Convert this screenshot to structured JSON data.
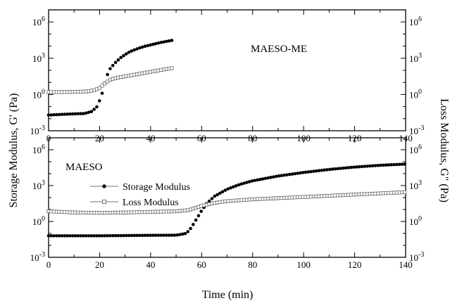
{
  "chart_data": [
    {
      "type": "scatter",
      "panel": "top",
      "annotation": "MAESO-ME",
      "xlim": [
        0,
        140
      ],
      "ylim_log10": [
        -3,
        7
      ],
      "y_scale": "log",
      "x_ticks": [
        "0",
        "20",
        "40",
        "60",
        "80",
        "100",
        "120",
        "140"
      ],
      "y_ticks": [
        "10^-3",
        "10^0",
        "10^3",
        "10^6"
      ],
      "series": [
        {
          "name": "Storage Modulus",
          "marker": "filled-circle",
          "x": [
            0,
            5,
            10,
            14,
            17,
            19,
            20,
            21,
            22,
            23,
            24,
            26,
            28,
            30,
            32,
            35,
            38,
            41,
            44,
            47,
            49
          ],
          "log10_y": [
            -1.7,
            -1.65,
            -1.6,
            -1.58,
            -1.4,
            -1.0,
            -0.5,
            0.1,
            0.9,
            1.6,
            2.1,
            2.6,
            3.0,
            3.3,
            3.55,
            3.8,
            4.0,
            4.15,
            4.3,
            4.42,
            4.5
          ]
        },
        {
          "name": "Loss Modulus",
          "marker": "open-square",
          "x": [
            0,
            5,
            10,
            15,
            18,
            20,
            22,
            24,
            26,
            30,
            34,
            38,
            42,
            46,
            49
          ],
          "log10_y": [
            0.2,
            0.2,
            0.22,
            0.25,
            0.35,
            0.55,
            0.9,
            1.2,
            1.35,
            1.5,
            1.65,
            1.8,
            1.95,
            2.1,
            2.2
          ]
        }
      ]
    },
    {
      "type": "scatter",
      "panel": "bottom",
      "annotation": "MAESO",
      "xlim": [
        0,
        140
      ],
      "ylim_log10": [
        -3,
        7
      ],
      "y_scale": "log",
      "x_ticks": [
        "0",
        "20",
        "40",
        "60",
        "80",
        "100",
        "120",
        "140"
      ],
      "y_ticks": [
        "10^-3",
        "10^0",
        "10^3",
        "10^6"
      ],
      "legend": {
        "placement": "upper-left",
        "entries": [
          "Storage Modulus",
          "Loss Modulus"
        ]
      },
      "series": [
        {
          "name": "Storage Modulus",
          "marker": "filled-circle",
          "x": [
            0,
            10,
            20,
            30,
            40,
            50,
            54,
            56,
            58,
            60,
            62,
            65,
            70,
            75,
            80,
            90,
            100,
            110,
            120,
            130,
            140
          ],
          "log10_y": [
            -1.2,
            -1.2,
            -1.2,
            -1.18,
            -1.16,
            -1.15,
            -1.0,
            -0.5,
            0.2,
            0.9,
            1.5,
            2.1,
            2.7,
            3.1,
            3.4,
            3.8,
            4.1,
            4.35,
            4.55,
            4.7,
            4.8
          ]
        },
        {
          "name": "Loss Modulus",
          "marker": "open-square",
          "x": [
            0,
            10,
            20,
            30,
            40,
            50,
            55,
            60,
            65,
            70,
            80,
            90,
            100,
            110,
            120,
            130,
            140
          ],
          "log10_y": [
            0.85,
            0.75,
            0.72,
            0.75,
            0.8,
            0.85,
            0.95,
            1.3,
            1.55,
            1.7,
            1.85,
            1.95,
            2.05,
            2.15,
            2.25,
            2.35,
            2.45
          ]
        }
      ]
    }
  ],
  "axes": {
    "xlabel": "Time (min)",
    "ylabel_left": "Storage Modulus, G' (Pa)",
    "ylabel_right": "Loss Modulus, G\" (Pa)"
  }
}
